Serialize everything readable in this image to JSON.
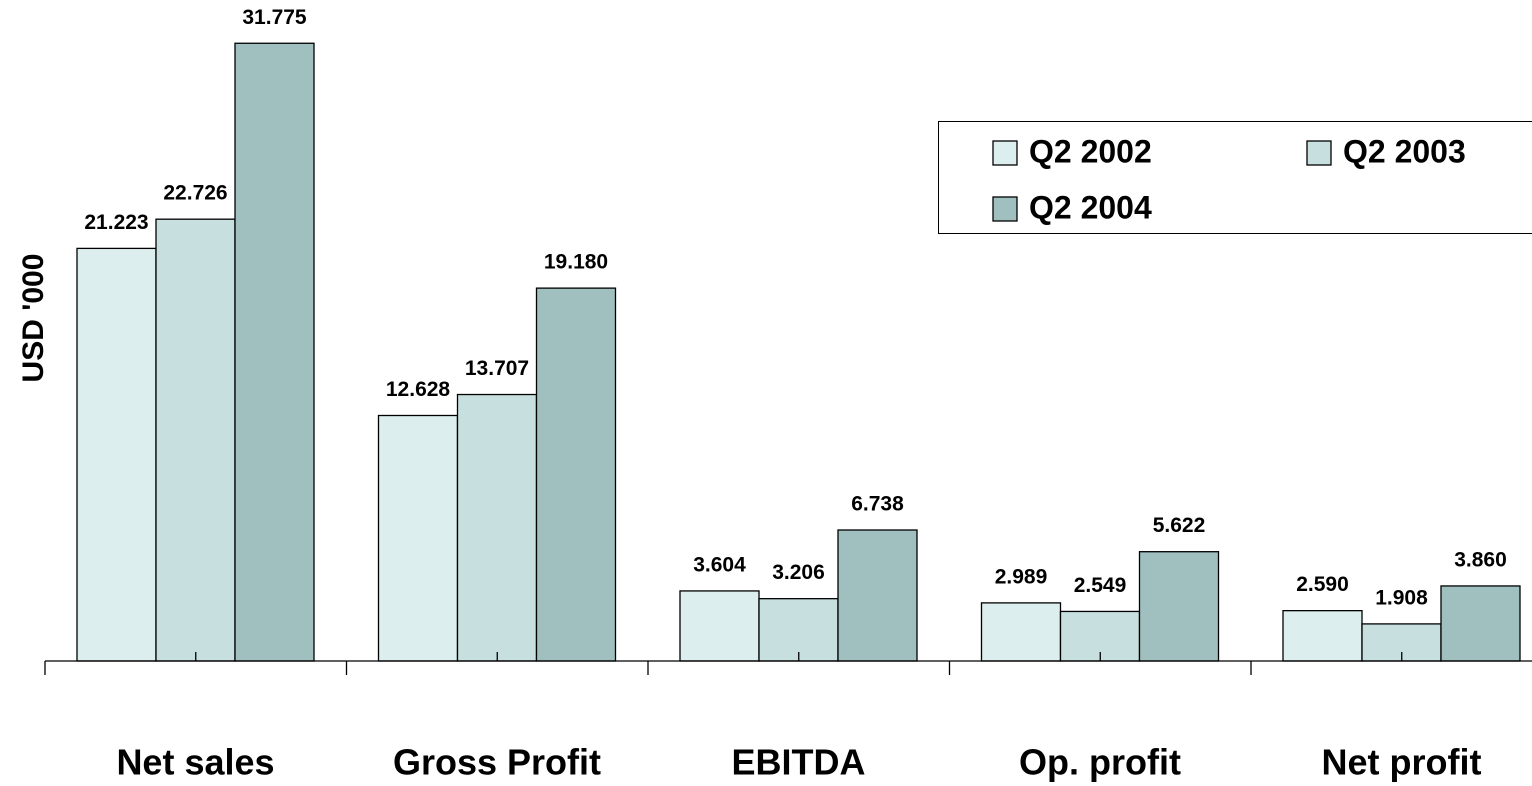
{
  "chart_data": {
    "type": "bar",
    "y_label": "USD '000",
    "categories": [
      "Net sales",
      "Gross Profit",
      "EBITDA",
      "Op. profit",
      "Net profit"
    ],
    "series": [
      {
        "name": "Q2 2002",
        "color": "#ddeeee",
        "values": [
          21.223,
          12.628,
          3.604,
          2.989,
          2.59
        ],
        "value_labels": [
          "21.223",
          "12.628",
          "3.604",
          "2.989",
          "2.590"
        ]
      },
      {
        "name": "Q2 2003",
        "color": "#c8dfe0",
        "values": [
          22.726,
          13.707,
          3.206,
          2.549,
          1.908
        ],
        "value_labels": [
          "22.726",
          "13.707",
          "3.206",
          "2.549",
          "1.908"
        ]
      },
      {
        "name": "Q2 2004",
        "color": "#a0c0c0",
        "values": [
          31.775,
          19.18,
          6.738,
          5.622,
          3.86
        ],
        "value_labels": [
          "31.775",
          "19.180",
          "6.738",
          "5.622",
          "3.860"
        ]
      }
    ],
    "ylim": [
      0,
      34
    ]
  }
}
